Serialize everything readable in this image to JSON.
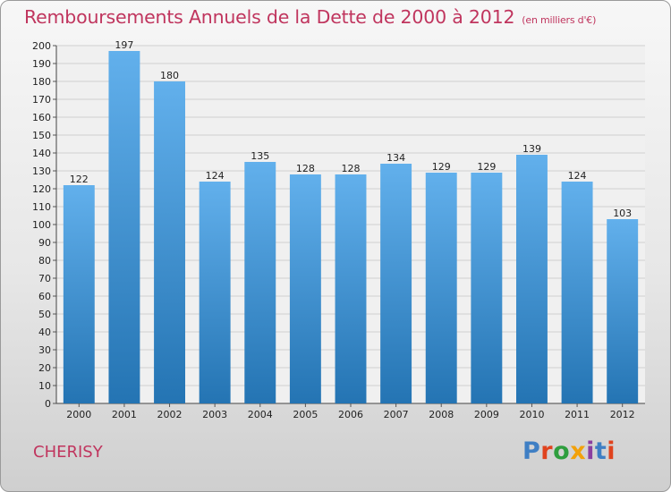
{
  "title": "Remboursements Annuels de la Dette de 2000 à 2012",
  "title_unit": "(en milliers d'€)",
  "commune": "CHERISY",
  "logo": {
    "text": "Proxiti",
    "colors": [
      "#3f7fc4",
      "#e0431e",
      "#2e9e3e",
      "#f2a10a",
      "#8b3fa0",
      "#3f7fc4",
      "#e0431e"
    ]
  },
  "colors": {
    "bar_top": "#62b0ec",
    "bar_bottom": "#2474b3",
    "title": "#c0355e",
    "grid": "#cfcfcf"
  },
  "chart_data": {
    "type": "bar",
    "categories": [
      "2000",
      "2001",
      "2002",
      "2003",
      "2004",
      "2005",
      "2006",
      "2007",
      "2008",
      "2009",
      "2010",
      "2011",
      "2012"
    ],
    "values": [
      122,
      197,
      180,
      124,
      135,
      128,
      128,
      134,
      129,
      129,
      139,
      124,
      103
    ],
    "title": "Remboursements Annuels de la Dette de 2000 à 2012",
    "ylim": [
      0,
      200
    ],
    "ytick_step": 10,
    "grid": true
  }
}
